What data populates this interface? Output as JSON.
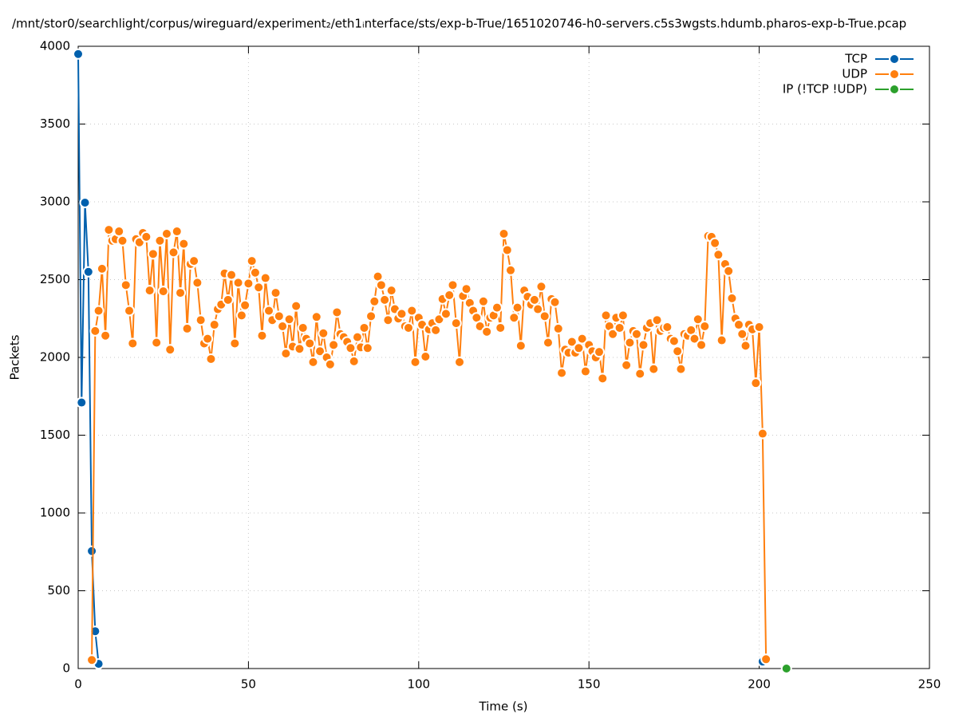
{
  "chart_data": {
    "type": "line",
    "title": "/mnt/stor0/searchlight/corpus/wireguard/experiment₂/eth1ᵢnterface/sts/exp-b-True/1651020746-h0-servers.c5s3wgsts.hdumb.pharos-exp-b-True.pcap",
    "xlabel": "Time (s)",
    "ylabel": "Packets",
    "xlim": [
      0,
      250
    ],
    "xticks": [
      0,
      50,
      100,
      150,
      200,
      250
    ],
    "ylim": [
      0,
      4000
    ],
    "yticks": [
      0,
      500,
      1000,
      1500,
      2000,
      2500,
      3000,
      3500,
      4000
    ],
    "grid": true,
    "legend": "top right",
    "series": [
      {
        "name": "TCP",
        "color": "#0060ad",
        "x": [
          0,
          1,
          2,
          3,
          4,
          5,
          6,
          7,
          201
        ],
        "values": [
          3950,
          1710,
          2995,
          2550,
          755,
          240,
          30,
          null,
          45
        ]
      },
      {
        "name": "UDP",
        "color": "#ff7f0e",
        "x": [
          4,
          5,
          6,
          7,
          8,
          9,
          10,
          11,
          12,
          13,
          14,
          15,
          16,
          17,
          18,
          19,
          20,
          21,
          22,
          23,
          24,
          25,
          26,
          27,
          28,
          29,
          30,
          31,
          32,
          33,
          34,
          35,
          36,
          37,
          38,
          39,
          40,
          41,
          42,
          43,
          44,
          45,
          46,
          47,
          48,
          49,
          50,
          51,
          52,
          53,
          54,
          55,
          56,
          57,
          58,
          59,
          60,
          61,
          62,
          63,
          64,
          65,
          66,
          67,
          68,
          69,
          70,
          71,
          72,
          73,
          74,
          75,
          76,
          77,
          78,
          79,
          80,
          81,
          82,
          83,
          84,
          85,
          86,
          87,
          88,
          89,
          90,
          91,
          92,
          93,
          94,
          95,
          96,
          97,
          98,
          99,
          100,
          101,
          102,
          103,
          104,
          105,
          106,
          107,
          108,
          109,
          110,
          111,
          112,
          113,
          114,
          115,
          116,
          117,
          118,
          119,
          120,
          121,
          122,
          123,
          124,
          125,
          126,
          127,
          128,
          129,
          130,
          131,
          132,
          133,
          134,
          135,
          136,
          137,
          138,
          139,
          140,
          141,
          142,
          143,
          144,
          145,
          146,
          147,
          148,
          149,
          150,
          151,
          152,
          153,
          154,
          155,
          156,
          157,
          158,
          159,
          160,
          161,
          162,
          163,
          164,
          165,
          166,
          167,
          168,
          169,
          170,
          171,
          172,
          173,
          174,
          175,
          176,
          177,
          178,
          179,
          180,
          181,
          182,
          183,
          184,
          185,
          186,
          187,
          188,
          189,
          190,
          191,
          192,
          193,
          194,
          195,
          196,
          197,
          198,
          199,
          200,
          201,
          202
        ],
        "values": [
          55,
          2170,
          2300,
          2570,
          2140,
          2820,
          2750,
          2760,
          2810,
          2750,
          2465,
          2300,
          2090,
          2760,
          2740,
          2800,
          2775,
          2430,
          2665,
          2095,
          2750,
          2425,
          2795,
          2050,
          2675,
          2810,
          2415,
          2730,
          2185,
          2600,
          2620,
          2480,
          2240,
          2090,
          2120,
          1990,
          2210,
          2310,
          2340,
          2540,
          2370,
          2530,
          2090,
          2480,
          2270,
          2335,
          2475,
          2620,
          2545,
          2450,
          2140,
          2510,
          2300,
          2240,
          2415,
          2265,
          2200,
          2025,
          2245,
          2070,
          2330,
          2055,
          2190,
          2120,
          2090,
          1970,
          2260,
          2040,
          2155,
          2000,
          1955,
          2080,
          2290,
          2150,
          2130,
          2100,
          2060,
          1975,
          2130,
          2065,
          2190,
          2060,
          2265,
          2360,
          2520,
          2465,
          2370,
          2240,
          2430,
          2310,
          2250,
          2280,
          2200,
          2190,
          2300,
          1970,
          2255,
          2210,
          2005,
          2180,
          2220,
          2175,
          2245,
          2375,
          2280,
          2400,
          2465,
          2220,
          1970,
          2395,
          2440,
          2350,
          2300,
          2255,
          2200,
          2360,
          2165,
          2255,
          2270,
          2320,
          2190,
          2795,
          2690,
          2560,
          2255,
          2320,
          2075,
          2430,
          2390,
          2340,
          2370,
          2310,
          2455,
          2265,
          2095,
          2375,
          2355,
          2185,
          1900,
          2050,
          2030,
          2100,
          2030,
          2060,
          2120,
          1910,
          2080,
          2040,
          2000,
          2035,
          1865,
          2270,
          2200,
          2150,
          2255,
          2190,
          2270,
          1950,
          2095,
          2170,
          2150,
          1895,
          2080,
          2190,
          2220,
          1925,
          2240,
          2170,
          2190,
          2195,
          2120,
          2105,
          2040,
          1925,
          2150,
          2140,
          2175,
          2120,
          2245,
          2080,
          2200,
          2780,
          2775,
          2735,
          2660,
          2110,
          2600,
          2555,
          2380,
          2250,
          2210,
          2150,
          2075,
          2210,
          2180,
          1835,
          2195,
          1510,
          60
        ]
      },
      {
        "name": "IP (!TCP  !UDP)",
        "color": "#2ca02c",
        "x": [
          208
        ],
        "values": [
          0
        ]
      }
    ]
  }
}
